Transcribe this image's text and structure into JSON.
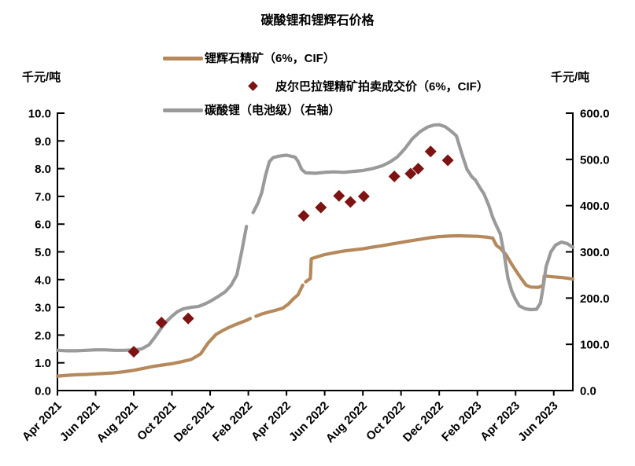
{
  "page_title": "碳酸锂和锂辉石价格",
  "chart_data": {
    "type": "line",
    "title": "碳酸锂和锂辉石价格",
    "legend_position": "top-left-above-plot",
    "grid": false,
    "left_axis": {
      "unit_label": "千元/吨",
      "min": 0,
      "max": 10,
      "tick_step": 1,
      "tick_labels": [
        "0.0",
        "1.0",
        "2.0",
        "3.0",
        "4.0",
        "5.0",
        "6.0",
        "7.0",
        "8.0",
        "9.0",
        "10.0"
      ]
    },
    "right_axis": {
      "unit_label": "千元/吨",
      "min": 0,
      "max": 600,
      "tick_step": 100,
      "tick_labels": [
        "0.0",
        "100.0",
        "200.0",
        "300.0",
        "400.0",
        "500.0",
        "600.0"
      ]
    },
    "x_axis": {
      "month_span": 27,
      "start_month": "Apr 2021",
      "tick_months": [
        0,
        2,
        4,
        6,
        8,
        10,
        12,
        14,
        16,
        18,
        20,
        22,
        24,
        26
      ],
      "tick_labels": [
        "Apr 2021",
        "Jun 2021",
        "Aug 2021",
        "Oct 2021",
        "Dec 2021",
        "Feb 2022",
        "Apr 2022",
        "Jun 2022",
        "Aug 2022",
        "Oct 2022",
        "Dec 2022",
        "Feb 2023",
        "Apr 2023",
        "Jun 2023"
      ]
    },
    "series": [
      {
        "id": "spodumene-concentrate-line",
        "name": "锂辉石精矿（6%，CIF）",
        "type": "line",
        "axis": "left",
        "color": "#B5895B",
        "segments": [
          [
            [
              0,
              0.52
            ],
            [
              0.5,
              0.55
            ],
            [
              1,
              0.57
            ],
            [
              1.5,
              0.58
            ],
            [
              2,
              0.6
            ],
            [
              2.5,
              0.62
            ],
            [
              3,
              0.64
            ],
            [
              3.5,
              0.68
            ],
            [
              4,
              0.73
            ],
            [
              4.5,
              0.8
            ],
            [
              5,
              0.87
            ],
            [
              5.5,
              0.92
            ],
            [
              6,
              0.97
            ],
            [
              6.5,
              1.04
            ],
            [
              7,
              1.12
            ],
            [
              7.5,
              1.32
            ],
            [
              7.9,
              1.72
            ],
            [
              8.3,
              2.02
            ],
            [
              8.7,
              2.18
            ],
            [
              9,
              2.28
            ],
            [
              9.3,
              2.37
            ],
            [
              9.6,
              2.45
            ],
            [
              9.9,
              2.53
            ],
            [
              10.1,
              2.6
            ]
          ],
          [
            [
              10.4,
              2.68
            ],
            [
              10.7,
              2.76
            ],
            [
              11,
              2.82
            ],
            [
              11.4,
              2.89
            ],
            [
              11.8,
              2.97
            ],
            [
              12.1,
              3.12
            ],
            [
              12.35,
              3.3
            ],
            [
              12.6,
              3.45
            ],
            [
              12.85,
              3.8
            ]
          ],
          [
            [
              13.0,
              3.92
            ],
            [
              13.25,
              4.04
            ],
            [
              13.3,
              4.75
            ],
            [
              13.6,
              4.82
            ],
            [
              14,
              4.9
            ],
            [
              14.5,
              4.97
            ],
            [
              15,
              5.03
            ],
            [
              15.5,
              5.07
            ],
            [
              16,
              5.11
            ],
            [
              16.5,
              5.17
            ],
            [
              17,
              5.22
            ],
            [
              17.5,
              5.28
            ],
            [
              18,
              5.34
            ],
            [
              18.5,
              5.4
            ],
            [
              19,
              5.45
            ],
            [
              19.5,
              5.51
            ],
            [
              20,
              5.55
            ],
            [
              20.5,
              5.57
            ],
            [
              21,
              5.58
            ],
            [
              21.5,
              5.57
            ],
            [
              22,
              5.56
            ],
            [
              22.5,
              5.53
            ],
            [
              22.8,
              5.5
            ],
            [
              23,
              5.23
            ],
            [
              23.2,
              5.13
            ],
            [
              23.5,
              4.9
            ],
            [
              23.8,
              4.55
            ],
            [
              24.2,
              4.13
            ],
            [
              24.55,
              3.8
            ],
            [
              24.8,
              3.73
            ],
            [
              25.2,
              3.72
            ],
            [
              25.45,
              3.79
            ],
            [
              25.5,
              4.13
            ],
            [
              26,
              4.1
            ],
            [
              26.5,
              4.07
            ],
            [
              27,
              4.02
            ]
          ]
        ]
      },
      {
        "id": "pilbara-auction-scatter",
        "name": "皮尔巴拉锂精矿拍卖成交价（6%，CIF）",
        "type": "scatter",
        "axis": "left",
        "color": "#7D1313",
        "points": [
          [
            4.0,
            1.4
          ],
          [
            5.45,
            2.45
          ],
          [
            6.85,
            2.6
          ],
          [
            12.9,
            6.3
          ],
          [
            13.8,
            6.6
          ],
          [
            14.75,
            7.02
          ],
          [
            15.35,
            6.8
          ],
          [
            16.05,
            7.0
          ],
          [
            17.65,
            7.72
          ],
          [
            18.5,
            7.82
          ],
          [
            18.9,
            8.0
          ],
          [
            19.55,
            8.62
          ],
          [
            20.45,
            8.3
          ]
        ]
      },
      {
        "id": "lithium-carbonate-line",
        "name": "碳酸锂（电池级）（右轴）",
        "type": "line",
        "axis": "right",
        "color": "#9A9A9A",
        "segments": [
          [
            [
              0,
              87
            ],
            [
              0.5,
              86
            ],
            [
              1,
              86
            ],
            [
              1.5,
              87
            ],
            [
              2,
              88
            ],
            [
              2.5,
              88
            ],
            [
              3,
              87
            ],
            [
              3.5,
              87
            ],
            [
              4,
              88
            ],
            [
              4.4,
              90
            ],
            [
              4.8,
              99
            ],
            [
              5.1,
              115
            ],
            [
              5.4,
              133
            ],
            [
              5.7,
              149
            ],
            [
              6,
              161
            ],
            [
              6.3,
              171
            ],
            [
              6.6,
              177
            ],
            [
              7,
              180
            ],
            [
              7.4,
              182
            ],
            [
              7.7,
              187
            ],
            [
              8,
              193
            ],
            [
              8.4,
              203
            ],
            [
              8.8,
              214
            ],
            [
              9.1,
              228
            ],
            [
              9.4,
              250
            ],
            [
              9.65,
              300
            ],
            [
              9.9,
              355
            ]
          ],
          [
            [
              10.25,
              385
            ],
            [
              10.5,
              405
            ],
            [
              10.7,
              428
            ],
            [
              10.9,
              465
            ],
            [
              11.1,
              495
            ],
            [
              11.3,
              504
            ],
            [
              11.6,
              507
            ],
            [
              12,
              509
            ],
            [
              12.45,
              505
            ],
            [
              12.6,
              496
            ],
            [
              12.8,
              478
            ],
            [
              13,
              471
            ],
            [
              13.5,
              470
            ],
            [
              14,
              472
            ],
            [
              14.5,
              473
            ],
            [
              15,
              472
            ],
            [
              15.5,
              474
            ],
            [
              16,
              476
            ],
            [
              16.5,
              480
            ],
            [
              17,
              486
            ],
            [
              17.4,
              494
            ],
            [
              17.8,
              505
            ],
            [
              18.2,
              523
            ],
            [
              18.6,
              545
            ],
            [
              19,
              560
            ],
            [
              19.4,
              570
            ],
            [
              19.7,
              574
            ],
            [
              20,
              575
            ],
            [
              20.3,
              571
            ],
            [
              20.6,
              562
            ],
            [
              20.9,
              551
            ],
            [
              21.2,
              510
            ],
            [
              21.45,
              479
            ],
            [
              21.7,
              463
            ],
            [
              21.9,
              455
            ],
            [
              22.1,
              441
            ],
            [
              22.35,
              425
            ],
            [
              22.6,
              400
            ],
            [
              22.8,
              375
            ],
            [
              23,
              356
            ],
            [
              23.2,
              339
            ],
            [
              23.4,
              295
            ],
            [
              23.6,
              243
            ],
            [
              23.8,
              215
            ],
            [
              24,
              197
            ],
            [
              24.2,
              183
            ],
            [
              24.5,
              177
            ],
            [
              24.8,
              175
            ],
            [
              25.1,
              176
            ],
            [
              25.3,
              189
            ],
            [
              25.45,
              225
            ],
            [
              25.6,
              268
            ],
            [
              25.85,
              300
            ],
            [
              26.1,
              315
            ],
            [
              26.4,
              321
            ],
            [
              26.7,
              318
            ],
            [
              27,
              310
            ]
          ]
        ]
      }
    ]
  }
}
